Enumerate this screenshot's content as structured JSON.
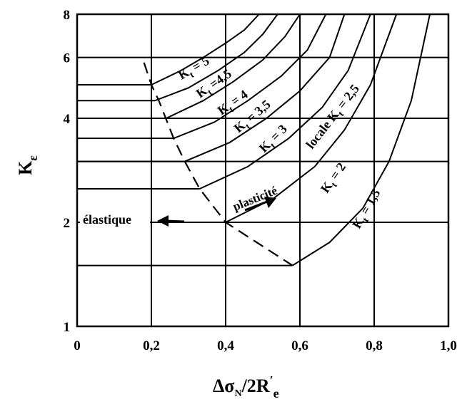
{
  "chart_data": {
    "type": "line",
    "x_ticks": [
      "0",
      "0,2",
      "0,4",
      "0,6",
      "0,8",
      "1,0"
    ],
    "y_ticks": [
      "1",
      "2",
      "4",
      "6",
      "8"
    ],
    "xlim": [
      0,
      1.0
    ],
    "ylim": [
      1,
      8
    ],
    "yscale": "log",
    "grid": true,
    "xlabel": {
      "main": "Δσ",
      "sub": "N",
      "mid": "/2R",
      "sup": "′",
      "sub2": "e"
    },
    "ylabel": {
      "main": "K",
      "sub": "ε"
    },
    "series": [
      {
        "name": "K t = 5",
        "plateau": 5.0,
        "points": [
          [
            0.2,
            5.0
          ],
          [
            0.28,
            5.5
          ],
          [
            0.34,
            6.0
          ],
          [
            0.4,
            6.6
          ],
          [
            0.45,
            7.2
          ],
          [
            0.49,
            8.0
          ]
        ]
      },
      {
        "name": "K t = 4,5",
        "plateau": 4.5,
        "points": [
          [
            0.21,
            4.5
          ],
          [
            0.3,
            4.9
          ],
          [
            0.38,
            5.5
          ],
          [
            0.45,
            6.2
          ],
          [
            0.5,
            7.0
          ],
          [
            0.54,
            8.0
          ]
        ]
      },
      {
        "name": "K t = 4",
        "plateau": 4.0,
        "points": [
          [
            0.24,
            4.0
          ],
          [
            0.34,
            4.5
          ],
          [
            0.42,
            5.1
          ],
          [
            0.5,
            5.9
          ],
          [
            0.56,
            6.9
          ],
          [
            0.6,
            8.0
          ]
        ]
      },
      {
        "name": "K t = 3,5",
        "plateau": 3.5,
        "points": [
          [
            0.26,
            3.5
          ],
          [
            0.37,
            3.9
          ],
          [
            0.46,
            4.5
          ],
          [
            0.55,
            5.3
          ],
          [
            0.62,
            6.3
          ],
          [
            0.67,
            8.0
          ]
        ]
      },
      {
        "name": "K t = 3",
        "plateau": 3.0,
        "points": [
          [
            0.29,
            3.0
          ],
          [
            0.41,
            3.4
          ],
          [
            0.51,
            4.0
          ],
          [
            0.6,
            4.8
          ],
          [
            0.68,
            6.0
          ],
          [
            0.72,
            8.0
          ]
        ]
      },
      {
        "name": "locale K t = 2,5",
        "plateau": 2.5,
        "points": [
          [
            0.33,
            2.5
          ],
          [
            0.46,
            2.9
          ],
          [
            0.57,
            3.5
          ],
          [
            0.66,
            4.3
          ],
          [
            0.73,
            5.5
          ],
          [
            0.79,
            8.0
          ]
        ]
      },
      {
        "name": "K t = 2",
        "plateau": 2.0,
        "points": [
          [
            0.4,
            2.0
          ],
          [
            0.53,
            2.35
          ],
          [
            0.64,
            2.9
          ],
          [
            0.72,
            3.7
          ],
          [
            0.79,
            5.0
          ],
          [
            0.86,
            8.0
          ]
        ]
      },
      {
        "name": "K t = 1,5",
        "plateau": 1.5,
        "points": [
          [
            0.58,
            1.5
          ],
          [
            0.68,
            1.75
          ],
          [
            0.77,
            2.2
          ],
          [
            0.84,
            3.0
          ],
          [
            0.9,
            4.5
          ],
          [
            0.95,
            8.0
          ]
        ]
      }
    ],
    "boundary_dashed": [
      [
        0.18,
        5.8
      ],
      [
        0.2,
        5.0
      ],
      [
        0.22,
        4.5
      ],
      [
        0.26,
        3.5
      ],
      [
        0.29,
        3.0
      ],
      [
        0.33,
        2.5
      ],
      [
        0.4,
        2.0
      ],
      [
        0.58,
        1.5
      ]
    ],
    "annotations": [
      "élastique",
      "plasticité"
    ],
    "curve_labels": [
      {
        "pre": "K",
        "sub": "t",
        "post": " = 5"
      },
      {
        "pre": "K",
        "sub": "t",
        "post": " =4,5"
      },
      {
        "pre": "K",
        "sub": "t",
        "post": " = 4"
      },
      {
        "pre": "K",
        "sub": "t",
        "post": " = 3,5"
      },
      {
        "pre": "K",
        "sub": "t",
        "post": " = 3"
      },
      {
        "pre": "locale K",
        "sub": "t",
        "post": " = 2,5"
      },
      {
        "pre": "K",
        "sub": "t",
        "post": " = 2"
      },
      {
        "pre": "K",
        "sub": "t",
        "post": " = 1,5"
      }
    ]
  }
}
